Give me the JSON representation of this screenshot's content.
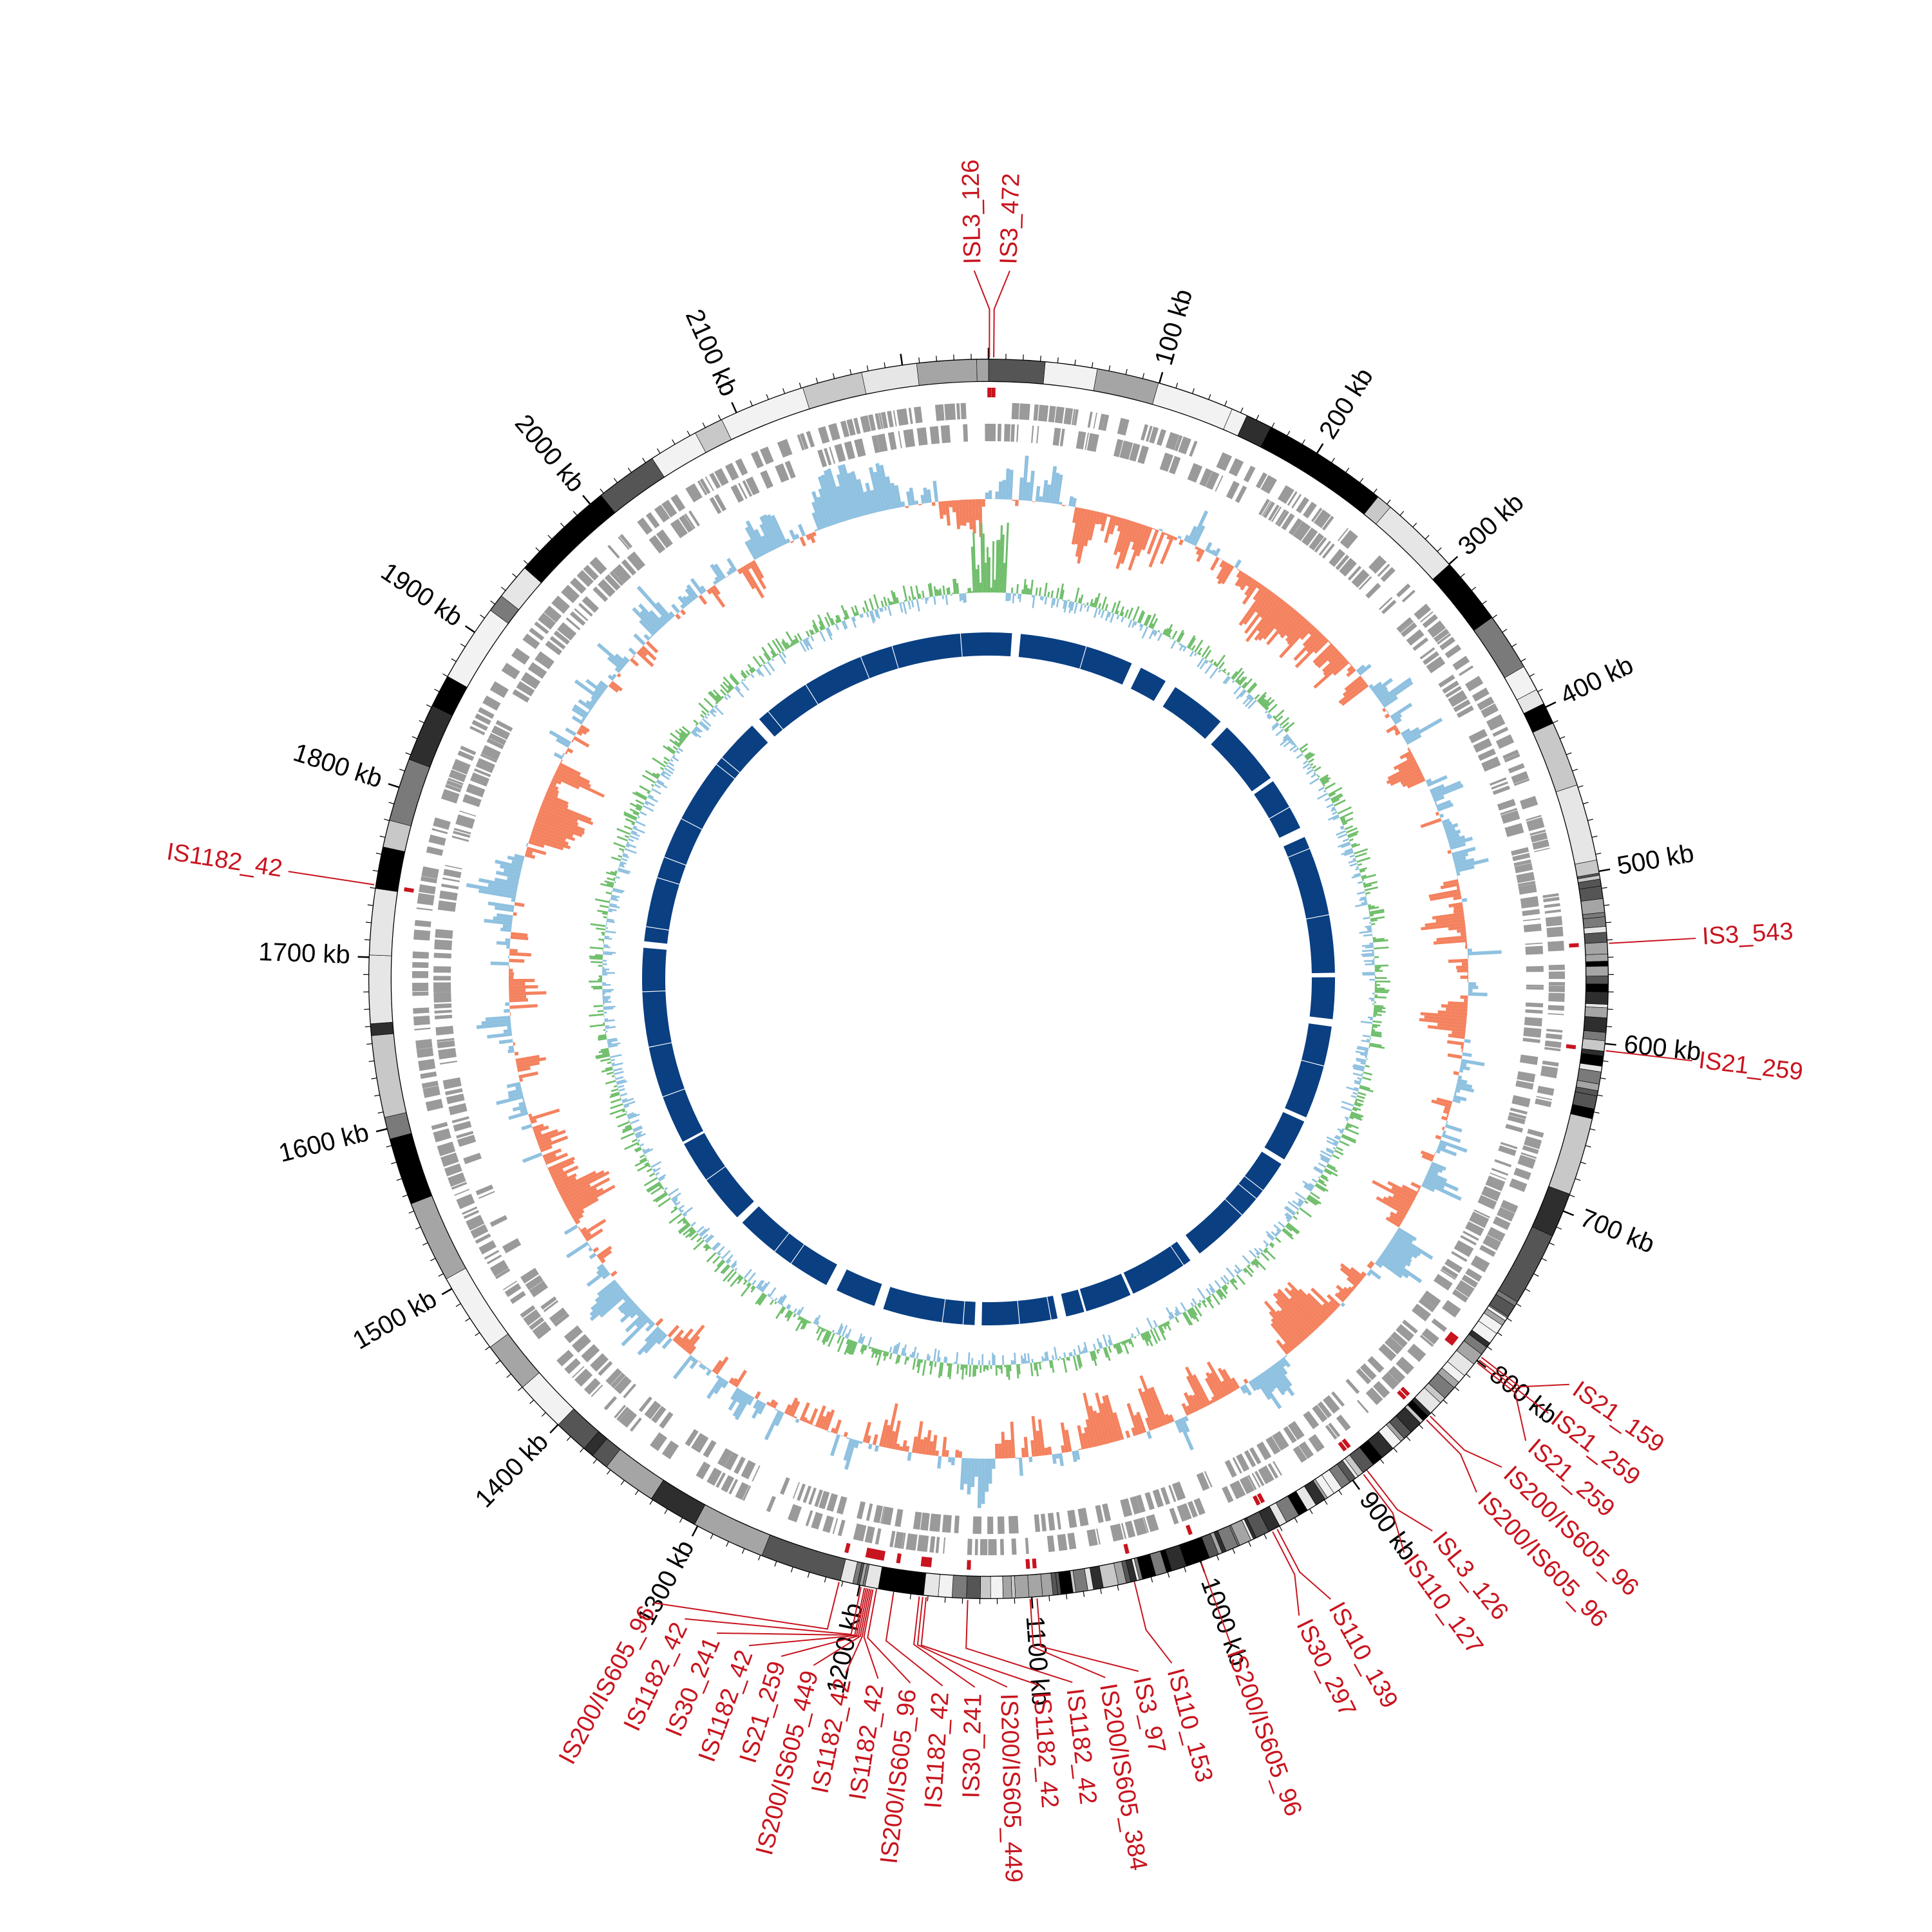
{
  "genome": {
    "length_kb": 2250,
    "tick_labels": [
      "100 kb",
      "200 kb",
      "300 kb",
      "400 kb",
      "500 kb",
      "600 kb",
      "700 kb",
      "800 kb",
      "900 kb",
      "1000 kb",
      "1100 kb",
      "1200 kb",
      "1300 kb",
      "1400 kb",
      "1500 kb",
      "1600 kb",
      "1700 kb",
      "1800 kb",
      "1900 kb",
      "2000 kb",
      "2100 kb"
    ],
    "tick_positions_kb": [
      100,
      200,
      300,
      400,
      500,
      600,
      700,
      800,
      900,
      1000,
      1100,
      1200,
      1300,
      1400,
      1500,
      1600,
      1700,
      1800,
      1900,
      2000,
      2100
    ]
  },
  "colors": {
    "is_element": "#c8141e",
    "gc_skew_positive": "#8fc1e0",
    "gc_skew_negative": "#f4825f",
    "gc_content_positive": "#6fbe6b",
    "gc_content_negative": "#8fc1e0",
    "inner_ring": "#0a3f82",
    "gene_features": "#9a9a9a"
  },
  "is_elements": [
    {
      "label": "ISL3_126",
      "kb": 0.5
    },
    {
      "label": "IS3_472",
      "kb": 3
    },
    {
      "label": "IS3_543",
      "kb": 542
    },
    {
      "label": "IS21_259",
      "kb": 604
    },
    {
      "label": "IS21_159",
      "kb": 797
    },
    {
      "label": "IS21_259",
      "kb": 799
    },
    {
      "label": "IS21_259",
      "kb": 801
    },
    {
      "label": "IS200/IS605_96",
      "kb": 842
    },
    {
      "label": "IS200/IS605_96",
      "kb": 845
    },
    {
      "label": "ISL3_126",
      "kb": 890
    },
    {
      "label": "IS110_127",
      "kb": 893
    },
    {
      "label": "IS110_139",
      "kb": 952
    },
    {
      "label": "IS30_297",
      "kb": 955
    },
    {
      "label": "IS200/IS605_96",
      "kb": 1000
    },
    {
      "label": "IS110_153",
      "kb": 1040
    },
    {
      "label": "IS3_97",
      "kb": 1097
    },
    {
      "label": "IS200/IS605_384",
      "kb": 1101
    },
    {
      "label": "IS1182_42",
      "kb": 1137
    },
    {
      "label": "IS1182_42",
      "kb": 1161
    },
    {
      "label": "IS200/IS605_449",
      "kb": 1163
    },
    {
      "label": "IS30_241",
      "kb": 1165
    },
    {
      "label": "IS1182_42",
      "kb": 1180
    },
    {
      "label": "IS200/IS605_96",
      "kb": 1190
    },
    {
      "label": "IS1182_42",
      "kb": 1192
    },
    {
      "label": "IS1182_42",
      "kb": 1193
    },
    {
      "label": "IS200/IS605_449",
      "kb": 1194
    },
    {
      "label": "IS21_259",
      "kb": 1195
    },
    {
      "label": "IS1182_42",
      "kb": 1196
    },
    {
      "label": "IS30_241",
      "kb": 1197
    },
    {
      "label": "IS1182_42",
      "kb": 1199
    },
    {
      "label": "IS200/IS605_96",
      "kb": 1212
    },
    {
      "label": "IS1182_42",
      "kb": 1742
    }
  ]
}
